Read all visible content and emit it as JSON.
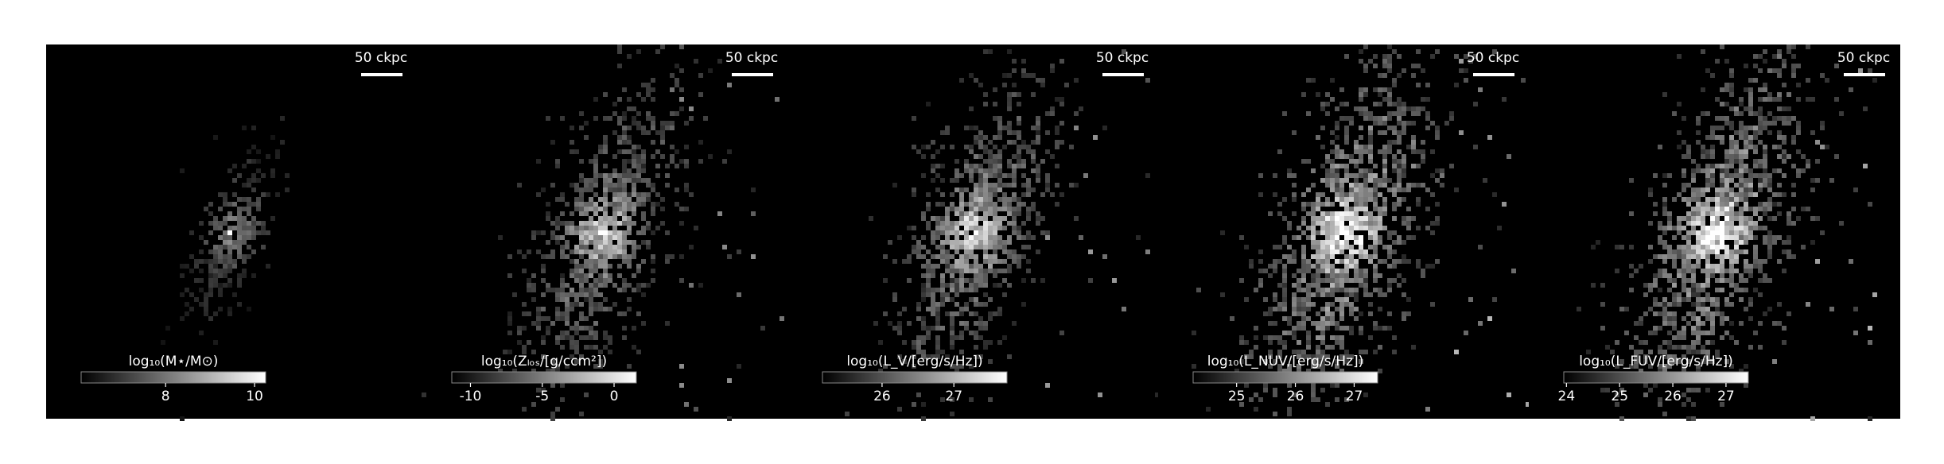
{
  "chart_data": [
    {
      "type": "image",
      "colorbar_label": "log₁₀(M⋆/M⊙)",
      "clim": [
        6.1,
        10.25
      ],
      "cticks": [
        8,
        10
      ],
      "scalebar": "50 ckpc"
    },
    {
      "type": "image",
      "colorbar_label": "log₁₀(Zₗₒₛ/[g/ccm²])",
      "clim": [
        -11.3,
        1.55
      ],
      "cticks": [
        -10,
        -5,
        0
      ],
      "scalebar": "50 ckpc"
    },
    {
      "type": "image",
      "colorbar_label": "log₁₀(L_V/[erg/s/Hz])",
      "clim": [
        25.17,
        27.74
      ],
      "cticks": [
        26,
        27
      ],
      "scalebar": "50 ckpc"
    },
    {
      "type": "image",
      "colorbar_label": "log₁₀(L_NUV/[erg/s/Hz])",
      "clim": [
        24.26,
        27.4
      ],
      "cticks": [
        25,
        26,
        27
      ],
      "scalebar": "50 ckpc"
    },
    {
      "type": "image",
      "colorbar_label": "log₁₀(L_FUV/[erg/s/Hz])",
      "clim": [
        23.95,
        27.42
      ],
      "cticks": [
        24,
        25,
        26,
        27
      ],
      "scalebar": "50 ckpc"
    }
  ]
}
